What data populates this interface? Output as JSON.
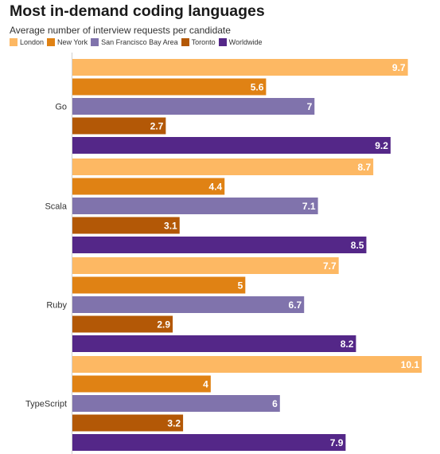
{
  "chart_data": {
    "type": "bar",
    "orientation": "horizontal",
    "title": "Most in-demand coding languages",
    "subtitle": "Average number of interview requests per candidate",
    "categories": [
      "Go",
      "Scala",
      "Ruby",
      "TypeScript"
    ],
    "series": [
      {
        "name": "London",
        "color": "#fdb863",
        "values": [
          9.7,
          8.7,
          7.7,
          10.1
        ]
      },
      {
        "name": "New York",
        "color": "#e08214",
        "values": [
          5.6,
          4.4,
          5,
          4
        ]
      },
      {
        "name": "San Francisco Bay Area",
        "color": "#8073ac",
        "values": [
          7,
          7.1,
          6.7,
          6
        ]
      },
      {
        "name": "Toronto",
        "color": "#b35806",
        "values": [
          2.7,
          3.1,
          2.9,
          3.2
        ]
      },
      {
        "name": "Worldwide",
        "color": "#542788",
        "values": [
          9.2,
          8.5,
          8.2,
          7.9
        ]
      }
    ],
    "xlim": [
      0,
      10.1
    ],
    "legend_position": "top-left",
    "grid": false,
    "data_labels": true
  }
}
